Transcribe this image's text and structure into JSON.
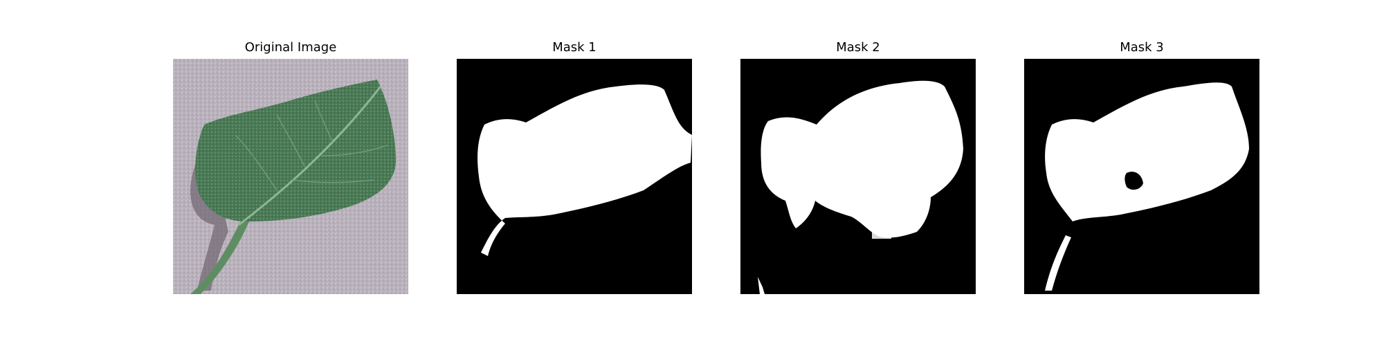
{
  "panels": [
    {
      "title": "Original Image",
      "kind": "photo",
      "icon": "leaf-photo"
    },
    {
      "title": "Mask 1",
      "kind": "mask",
      "icon": "segmentation-mask"
    },
    {
      "title": "Mask 2",
      "kind": "mask",
      "icon": "segmentation-mask"
    },
    {
      "title": "Mask 3",
      "kind": "mask",
      "icon": "segmentation-mask"
    }
  ],
  "colors": {
    "background": "#ffffff",
    "photo_background": "#b9b1bb",
    "leaf": "#4f7f58",
    "leaf_dark": "#2e5a3a",
    "mask_background": "#000000",
    "mask_foreground": "#ffffff"
  }
}
